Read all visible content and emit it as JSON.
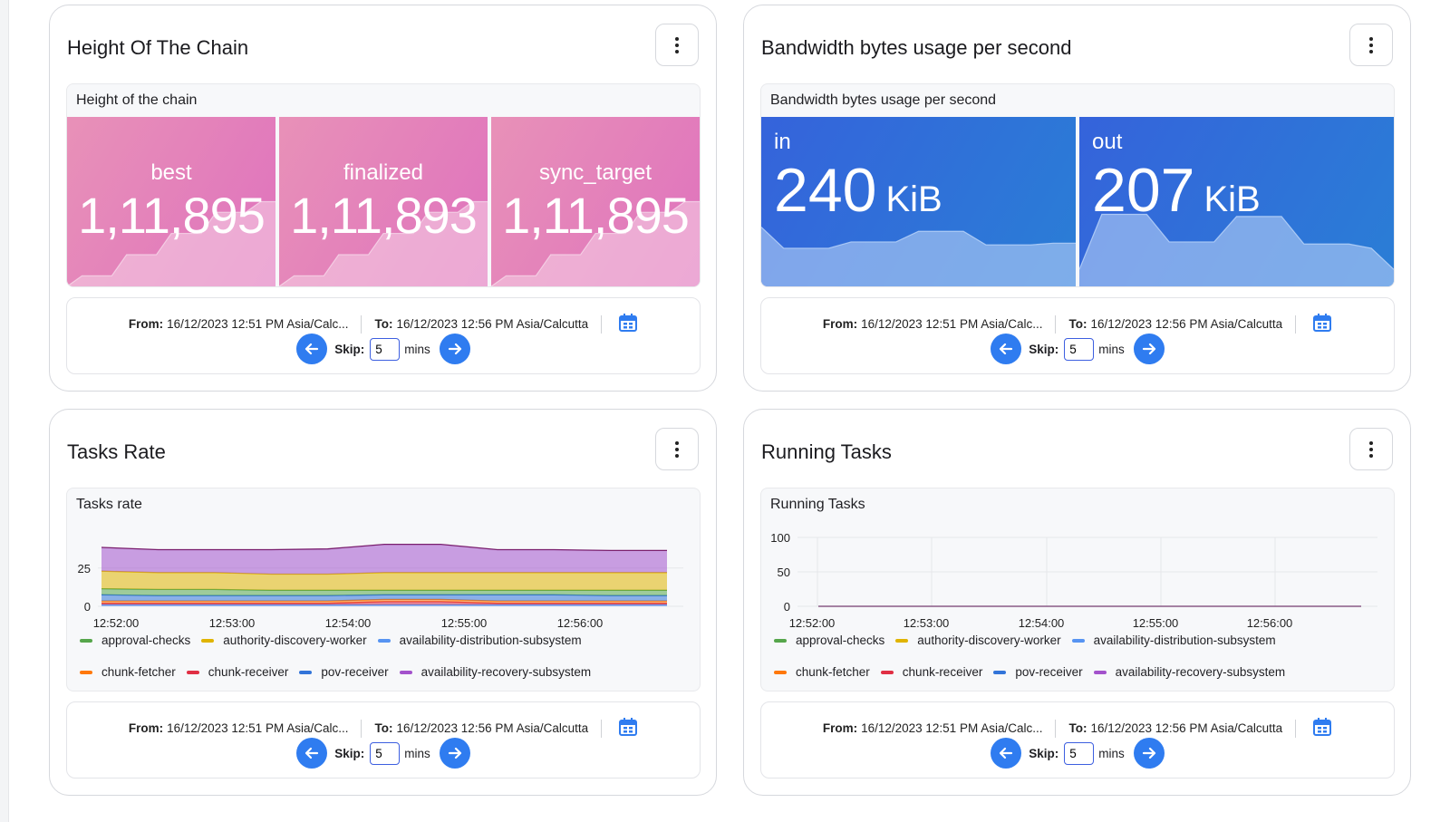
{
  "date_controls": {
    "from_label": "From:",
    "from_value": "16/12/2023 12:51 PM Asia/Calc...",
    "to_label": "To:",
    "to_value": "16/12/2023 12:56 PM Asia/Calcutta",
    "skip_label": "Skip:",
    "skip_value": "5",
    "skip_unit": "mins"
  },
  "legend": [
    {
      "name": "approval-checks",
      "color": "#56a64b"
    },
    {
      "name": "authority-discovery-worker",
      "color": "#e0b400"
    },
    {
      "name": "availability-distribution-subsystem",
      "color": "#5794f2"
    },
    {
      "name": "chunk-fetcher",
      "color": "#ff780a"
    },
    {
      "name": "chunk-receiver",
      "color": "#e02f44"
    },
    {
      "name": "pov-receiver",
      "color": "#3274d9"
    },
    {
      "name": "availability-recovery-subsystem",
      "color": "#a352cc"
    }
  ],
  "cards": [
    {
      "title": "Height Of The Chain",
      "panel_title": "Height of the chain",
      "kind": "stat-pink",
      "stats": [
        {
          "label": "best",
          "value": "1,11,895",
          "spark": [
            0,
            1,
            1,
            1,
            3,
            3,
            3,
            5,
            5,
            5,
            7,
            7,
            7,
            8,
            8
          ]
        },
        {
          "label": "finalized",
          "value": "1,11,893",
          "spark": [
            0,
            1,
            1,
            1,
            3,
            3,
            3,
            5,
            5,
            5,
            7,
            7,
            7,
            8,
            8
          ]
        },
        {
          "label": "sync_target",
          "value": "1,11,895",
          "spark": [
            0,
            1,
            1,
            1,
            3,
            3,
            3,
            5,
            5,
            5,
            7,
            7,
            7,
            8,
            8
          ]
        }
      ]
    },
    {
      "title": "Bandwidth bytes usage per second",
      "panel_title": "Bandwidth bytes usage per second",
      "kind": "stat-blue",
      "stats": [
        {
          "label": "in",
          "value": "240",
          "unit": "KiB",
          "spark": [
            260,
            210,
            210,
            210,
            225,
            225,
            225,
            250,
            250,
            250,
            218,
            218,
            218,
            222,
            222
          ]
        },
        {
          "label": "out",
          "value": "207",
          "unit": "KiB",
          "spark": [
            160,
            290,
            290,
            290,
            225,
            225,
            225,
            285,
            285,
            285,
            220,
            220,
            220,
            210,
            160
          ]
        }
      ]
    },
    {
      "title": "Tasks Rate",
      "panel_title": "Tasks rate",
      "kind": "stacked",
      "chart_data": {
        "type": "area",
        "x": [
          "12:52:00",
          "12:52:30",
          "12:53:00",
          "12:53:30",
          "12:54:00",
          "12:54:30",
          "12:55:00",
          "12:55:30",
          "12:56:00",
          "12:56:30",
          "12:56:50"
        ],
        "xticks": [
          "12:52:00",
          "12:53:00",
          "12:54:00",
          "12:55:00",
          "12:56:00"
        ],
        "yticks": [
          "0",
          "25"
        ],
        "ylim": [
          0,
          45
        ],
        "series": [
          {
            "name": "availability-distribution-subsystem",
            "values": [
              1,
              1,
              1,
              1,
              1,
              1,
              1,
              1,
              1,
              1,
              1
            ]
          },
          {
            "name": "chunk-receiver",
            "values": [
              1,
              1,
              1,
              1,
              1,
              2,
              2,
              1,
              1,
              1,
              1
            ]
          },
          {
            "name": "chunk-fetcher",
            "values": [
              1.5,
              1.5,
              1.5,
              1.5,
              1.5,
              1.5,
              1.5,
              1.5,
              1.5,
              1.5,
              1.5
            ]
          },
          {
            "name": "pov-receiver",
            "values": [
              4,
              3.5,
              3.5,
              3.5,
              3.5,
              3,
              3,
              4,
              4,
              3.5,
              3.5
            ]
          },
          {
            "name": "approval-checks",
            "values": [
              4,
              4,
              4,
              3.5,
              3.5,
              3,
              3,
              3,
              3,
              3.5,
              3.5
            ]
          },
          {
            "name": "authority-discovery-worker",
            "values": [
              11.5,
              11,
              11,
              10.5,
              10.5,
              11.5,
              11.5,
              11.5,
              11.5,
              11.5,
              11.5
            ]
          },
          {
            "name": "availability-recovery-subsystem",
            "values": [
              15.5,
              15,
              15,
              16,
              16.5,
              18.5,
              18.5,
              15,
              15,
              14.5,
              14.5
            ]
          }
        ]
      }
    },
    {
      "title": "Running Tasks",
      "panel_title": "Running Tasks",
      "kind": "line",
      "chart_data": {
        "type": "line",
        "x": [
          "12:51:50",
          "12:56:50"
        ],
        "xticks": [
          "12:52:00",
          "12:53:00",
          "12:54:00",
          "12:55:00",
          "12:56:00"
        ],
        "yticks": [
          "0",
          "50",
          "100"
        ],
        "ylim": [
          0,
          100
        ],
        "series": [
          {
            "name": "availability-recovery-subsystem",
            "values": [
              0,
              0
            ]
          }
        ]
      }
    }
  ]
}
